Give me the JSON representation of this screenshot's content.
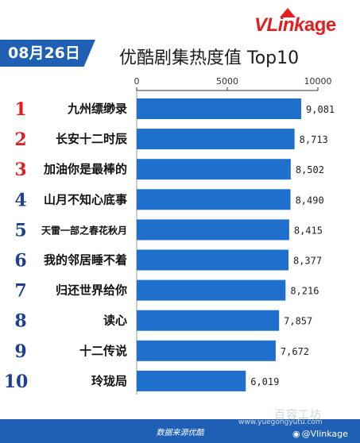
{
  "date_badge": "08月26日",
  "logo": {
    "v": "V",
    "l": "L",
    "ink": "ink",
    "age": "age"
  },
  "chart_data": {
    "type": "bar",
    "orientation": "horizontal",
    "title": "优酷剧集热度值 Top10",
    "ranks": [
      "1",
      "2",
      "3",
      "4",
      "5",
      "6",
      "7",
      "8",
      "9",
      "10"
    ],
    "categories": [
      "九州缥缈录",
      "长安十二时辰",
      "加油你是最棒的",
      "山月不知心底事",
      "天雷一部之春花秋月",
      "我的邻居睡不着",
      "归还世界给你",
      "读心",
      "十二传说",
      "玲珑局"
    ],
    "values": [
      9081,
      8713,
      8502,
      8490,
      8415,
      8377,
      8216,
      7857,
      7672,
      6019
    ],
    "value_labels": [
      "9,081",
      "8,713",
      "8,502",
      "8,490",
      "8,415",
      "8,377",
      "8,216",
      "7,857",
      "7,672",
      "6,019"
    ],
    "xlim": [
      0,
      10000
    ],
    "xticks": [
      0,
      5000,
      10000
    ],
    "xtick_labels": [
      "0",
      "5000",
      "10000"
    ],
    "axis_position": "top",
    "grid": false,
    "bar_color": "#1f6fcc",
    "rank_colors": {
      "top3": "#e02020",
      "rest": "#1f3f8f"
    }
  },
  "footer": {
    "source": "数据来源优酷"
  },
  "watermarks": {
    "site_cn": "百容工坊",
    "site_url": "www.yuegongyutu.com",
    "weibo": "@Vlinkage"
  }
}
